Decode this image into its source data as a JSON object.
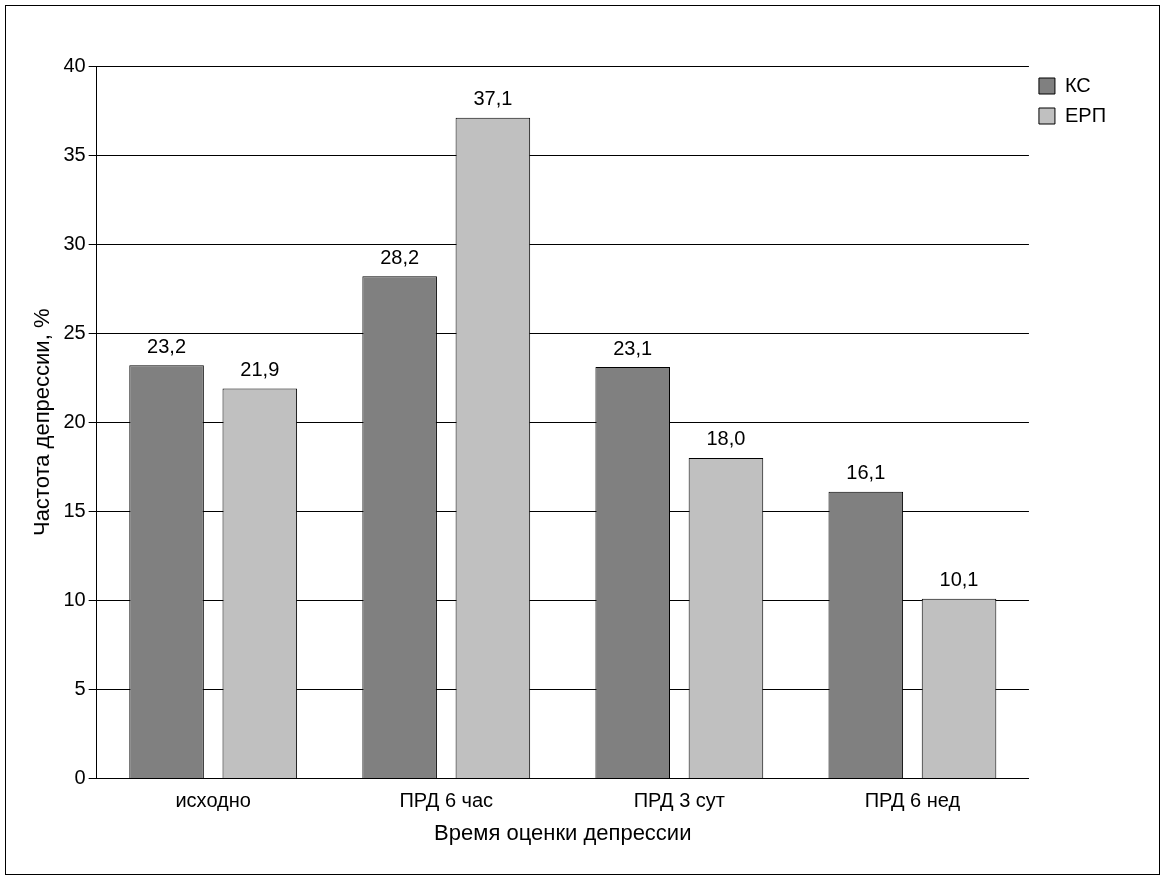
{
  "chart_data": {
    "type": "bar",
    "xlabel": "Время оценки депрессии",
    "ylabel": "Частота депрессии, %",
    "categories": [
      "исходно",
      "ПРД 6 час",
      "ПРД 3 сут",
      "ПРД 6 нед"
    ],
    "series": [
      {
        "name": "КС",
        "color": "#808080",
        "values": [
          23.2,
          28.2,
          23.1,
          16.1
        ],
        "value_labels": [
          "23,2",
          "28,2",
          "23,1",
          "16,1"
        ]
      },
      {
        "name": "ЕРП",
        "color": "#c0c0c0",
        "values": [
          21.9,
          37.1,
          18.0,
          10.1
        ],
        "value_labels": [
          "21,9",
          "37,1",
          "18,0",
          "10,1"
        ]
      }
    ],
    "ylim": [
      0,
      40
    ],
    "yticks": [
      0,
      5,
      10,
      15,
      20,
      25,
      30,
      35,
      40
    ],
    "grid": "y",
    "legend": "top right"
  }
}
